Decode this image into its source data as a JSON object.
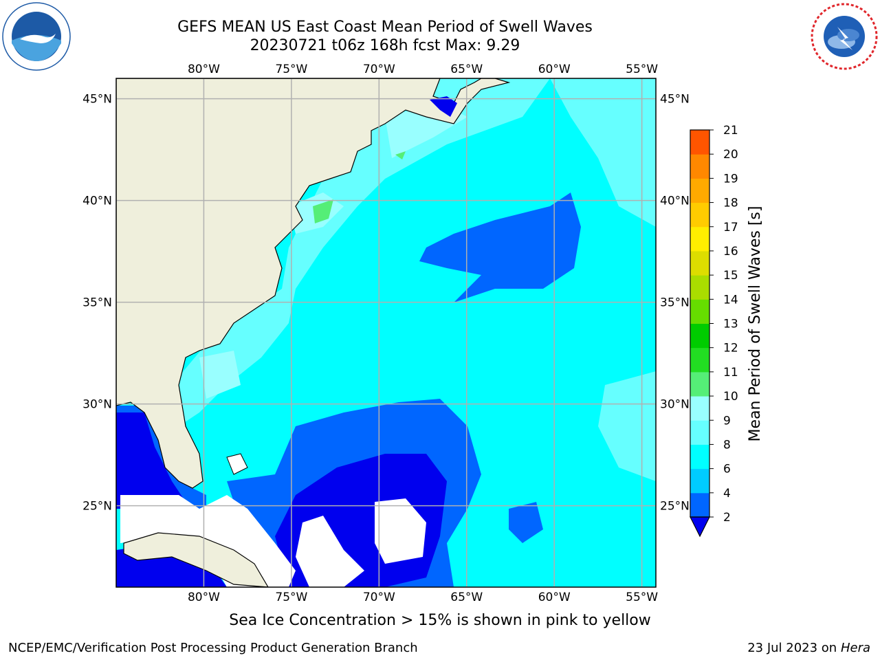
{
  "header": {
    "title_line1": "GEFS MEAN US East Coast Mean Period of Swell Waves",
    "title_line2": "20230721 t06z 168h fcst   Max: 9.29"
  },
  "logos": {
    "left": "noaa-logo",
    "right": "national-weather-service-logo"
  },
  "map": {
    "lon_labels": [
      "80°W",
      "75°W",
      "70°W",
      "65°W",
      "60°W",
      "55°W"
    ],
    "lat_labels": [
      "45°N",
      "40°N",
      "35°N",
      "30°N",
      "25°N"
    ],
    "lon_values": [
      -80,
      -75,
      -70,
      -65,
      -60,
      -55
    ],
    "lat_values": [
      45,
      40,
      35,
      30,
      25
    ],
    "extent": {
      "lon_min": -85,
      "lon_max": -54.2,
      "lat_min": 21,
      "lat_max": 46
    },
    "colors": {
      "land": "#efefdc",
      "no_data": "#ffffff",
      "grid": "#b0b0b0",
      "coast": "#000000"
    }
  },
  "colorbar": {
    "label": "Mean Period of Swell Waves [s]",
    "tick_labels": [
      "2",
      "4",
      "6",
      "8",
      "9",
      "10",
      "11",
      "12",
      "13",
      "14",
      "15",
      "16",
      "17",
      "18",
      "19",
      "20",
      "21"
    ],
    "colors": [
      "#0066ff",
      "#00ccff",
      "#00ffff",
      "#66ffff",
      "#99ffff",
      "#55ee77",
      "#22dd22",
      "#00cc00",
      "#66dd00",
      "#aadd00",
      "#dddd00",
      "#ffee00",
      "#ffcc00",
      "#ffaa00",
      "#ff8800",
      "#ff5500",
      "#ff2200",
      "#ff0000"
    ],
    "extend_color": "#0000ee"
  },
  "footer": {
    "note": "Sea Ice Concentration > 15% is shown in pink to yellow",
    "credit_left": "NCEP/EMC/Verification Post Processing Product Generation Branch",
    "date": "23 Jul 2023 on",
    "host": "Hera"
  }
}
